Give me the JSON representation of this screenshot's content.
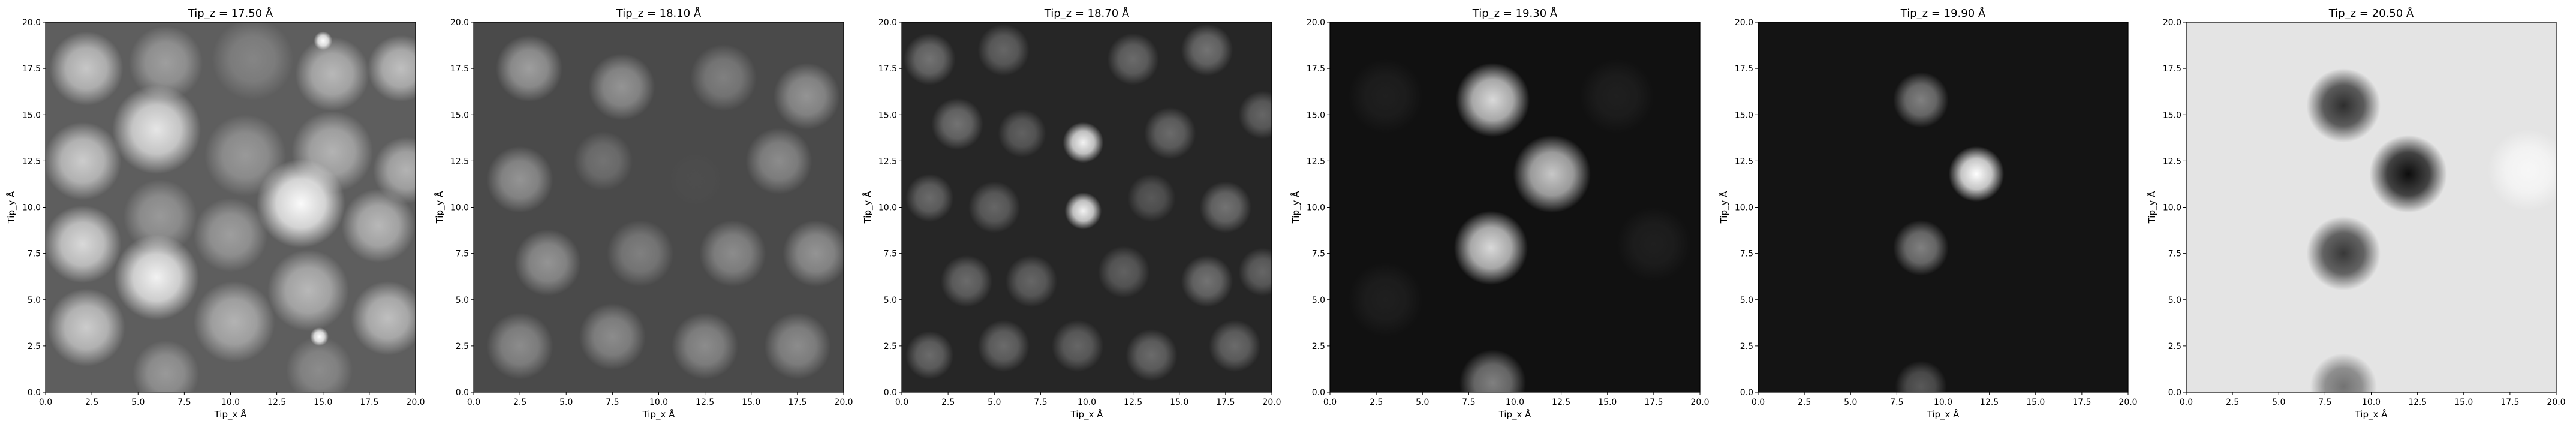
{
  "chart_data": [
    {
      "type": "heatmap",
      "title": "Tip_z = 17.50 Å",
      "xlabel": "Tip_x Å",
      "ylabel": "Tip_y Å",
      "xlim": [
        0,
        20
      ],
      "ylim": [
        0,
        20
      ],
      "xticks": [
        "0.0",
        "2.5",
        "5.0",
        "7.5",
        "10.0",
        "12.5",
        "15.0",
        "17.5",
        "20.0"
      ],
      "yticks": [
        "0.0",
        "2.5",
        "5.0",
        "7.5",
        "10.0",
        "12.5",
        "15.0",
        "17.5",
        "20.0"
      ],
      "colormap": "gray",
      "background": "#5e5e5e",
      "features": [
        {
          "x": 2.2,
          "y": 17.5,
          "r": 2.0,
          "v": 0.78
        },
        {
          "x": 6.5,
          "y": 17.8,
          "r": 2.0,
          "v": 0.62
        },
        {
          "x": 11.2,
          "y": 18.0,
          "r": 2.2,
          "v": 0.52
        },
        {
          "x": 15.5,
          "y": 17.2,
          "r": 2.0,
          "v": 0.72
        },
        {
          "x": 19.2,
          "y": 17.5,
          "r": 1.8,
          "v": 0.75
        },
        {
          "x": 2.0,
          "y": 12.5,
          "r": 2.1,
          "v": 0.8
        },
        {
          "x": 6.0,
          "y": 14.2,
          "r": 2.4,
          "v": 0.9
        },
        {
          "x": 10.8,
          "y": 12.8,
          "r": 2.2,
          "v": 0.6
        },
        {
          "x": 15.5,
          "y": 13.0,
          "r": 2.2,
          "v": 0.7
        },
        {
          "x": 19.5,
          "y": 12.0,
          "r": 1.8,
          "v": 0.7
        },
        {
          "x": 2.0,
          "y": 8.0,
          "r": 2.1,
          "v": 0.85
        },
        {
          "x": 6.2,
          "y": 9.5,
          "r": 2.0,
          "v": 0.6
        },
        {
          "x": 10.0,
          "y": 8.5,
          "r": 2.0,
          "v": 0.62
        },
        {
          "x": 13.8,
          "y": 10.2,
          "r": 2.4,
          "v": 0.98
        },
        {
          "x": 18.0,
          "y": 9.0,
          "r": 2.0,
          "v": 0.72
        },
        {
          "x": 2.2,
          "y": 3.5,
          "r": 2.1,
          "v": 0.8
        },
        {
          "x": 6.0,
          "y": 6.2,
          "r": 2.3,
          "v": 0.95
        },
        {
          "x": 10.2,
          "y": 3.8,
          "r": 2.2,
          "v": 0.7
        },
        {
          "x": 14.2,
          "y": 5.5,
          "r": 2.2,
          "v": 0.72
        },
        {
          "x": 18.5,
          "y": 4.0,
          "r": 2.0,
          "v": 0.75
        },
        {
          "x": 6.5,
          "y": 1.0,
          "r": 1.8,
          "v": 0.6
        },
        {
          "x": 14.8,
          "y": 1.2,
          "r": 1.8,
          "v": 0.55
        },
        {
          "x": 15.0,
          "y": 19.0,
          "r": 0.5,
          "v": 1.0
        },
        {
          "x": 14.8,
          "y": 3.0,
          "r": 0.5,
          "v": 1.0
        }
      ]
    },
    {
      "type": "heatmap",
      "title": "Tip_z = 18.10 Å",
      "xlabel": "Tip_x Å",
      "ylabel": "Tip_y Å",
      "xlim": [
        0,
        20
      ],
      "ylim": [
        0,
        20
      ],
      "xticks": [
        "0.0",
        "2.5",
        "5.0",
        "7.5",
        "10.0",
        "12.5",
        "15.0",
        "17.5",
        "20.0"
      ],
      "yticks": [
        "0.0",
        "2.5",
        "5.0",
        "7.5",
        "10.0",
        "12.5",
        "15.0",
        "17.5",
        "20.0"
      ],
      "colormap": "gray",
      "background": "#4a4a4a",
      "features": [
        {
          "x": 3.0,
          "y": 17.5,
          "r": 1.8,
          "v": 0.62
        },
        {
          "x": 8.0,
          "y": 16.5,
          "r": 1.8,
          "v": 0.58
        },
        {
          "x": 13.5,
          "y": 17.0,
          "r": 1.8,
          "v": 0.5
        },
        {
          "x": 18.0,
          "y": 16.0,
          "r": 1.8,
          "v": 0.58
        },
        {
          "x": 2.5,
          "y": 11.5,
          "r": 1.8,
          "v": 0.58
        },
        {
          "x": 7.0,
          "y": 12.5,
          "r": 1.6,
          "v": 0.45
        },
        {
          "x": 12.0,
          "y": 11.5,
          "r": 1.5,
          "v": 0.3
        },
        {
          "x": 16.5,
          "y": 12.5,
          "r": 1.8,
          "v": 0.55
        },
        {
          "x": 4.0,
          "y": 7.0,
          "r": 1.8,
          "v": 0.58
        },
        {
          "x": 9.0,
          "y": 7.5,
          "r": 1.8,
          "v": 0.5
        },
        {
          "x": 14.0,
          "y": 7.5,
          "r": 1.8,
          "v": 0.55
        },
        {
          "x": 18.5,
          "y": 7.5,
          "r": 1.8,
          "v": 0.58
        },
        {
          "x": 2.5,
          "y": 2.5,
          "r": 1.8,
          "v": 0.55
        },
        {
          "x": 7.5,
          "y": 3.0,
          "r": 1.8,
          "v": 0.55
        },
        {
          "x": 12.5,
          "y": 2.5,
          "r": 1.8,
          "v": 0.55
        },
        {
          "x": 17.5,
          "y": 2.5,
          "r": 1.8,
          "v": 0.55
        }
      ]
    },
    {
      "type": "heatmap",
      "title": "Tip_z = 18.70 Å",
      "xlabel": "Tip_x Å",
      "ylabel": "Tip_y Å",
      "xlim": [
        0,
        20
      ],
      "ylim": [
        0,
        20
      ],
      "xticks": [
        "0.0",
        "2.5",
        "5.0",
        "7.5",
        "10.0",
        "12.5",
        "15.0",
        "17.5",
        "20.0"
      ],
      "yticks": [
        "0.0",
        "2.5",
        "5.0",
        "7.5",
        "10.0",
        "12.5",
        "15.0",
        "17.5",
        "20.0"
      ],
      "colormap": "gray",
      "background": "#262626",
      "features": [
        {
          "x": 1.5,
          "y": 18.0,
          "r": 1.4,
          "v": 0.45
        },
        {
          "x": 5.5,
          "y": 18.5,
          "r": 1.4,
          "v": 0.4
        },
        {
          "x": 12.5,
          "y": 18.0,
          "r": 1.4,
          "v": 0.42
        },
        {
          "x": 16.5,
          "y": 18.5,
          "r": 1.4,
          "v": 0.45
        },
        {
          "x": 19.5,
          "y": 15.0,
          "r": 1.3,
          "v": 0.4
        },
        {
          "x": 3.0,
          "y": 14.5,
          "r": 1.4,
          "v": 0.45
        },
        {
          "x": 6.5,
          "y": 14.0,
          "r": 1.3,
          "v": 0.38
        },
        {
          "x": 9.8,
          "y": 13.5,
          "r": 1.1,
          "v": 0.95
        },
        {
          "x": 14.5,
          "y": 14.0,
          "r": 1.4,
          "v": 0.42
        },
        {
          "x": 1.5,
          "y": 10.5,
          "r": 1.3,
          "v": 0.42
        },
        {
          "x": 5.0,
          "y": 10.0,
          "r": 1.4,
          "v": 0.4
        },
        {
          "x": 9.8,
          "y": 9.8,
          "r": 1.0,
          "v": 0.95
        },
        {
          "x": 13.5,
          "y": 10.5,
          "r": 1.3,
          "v": 0.35
        },
        {
          "x": 17.5,
          "y": 10.0,
          "r": 1.4,
          "v": 0.45
        },
        {
          "x": 3.5,
          "y": 6.0,
          "r": 1.4,
          "v": 0.42
        },
        {
          "x": 7.0,
          "y": 6.0,
          "r": 1.4,
          "v": 0.4
        },
        {
          "x": 12.0,
          "y": 6.5,
          "r": 1.4,
          "v": 0.38
        },
        {
          "x": 16.5,
          "y": 6.0,
          "r": 1.4,
          "v": 0.45
        },
        {
          "x": 19.5,
          "y": 6.5,
          "r": 1.3,
          "v": 0.4
        },
        {
          "x": 1.5,
          "y": 2.0,
          "r": 1.3,
          "v": 0.42
        },
        {
          "x": 5.5,
          "y": 2.5,
          "r": 1.4,
          "v": 0.42
        },
        {
          "x": 9.5,
          "y": 2.5,
          "r": 1.4,
          "v": 0.4
        },
        {
          "x": 13.5,
          "y": 2.0,
          "r": 1.4,
          "v": 0.42
        },
        {
          "x": 18.0,
          "y": 2.5,
          "r": 1.4,
          "v": 0.42
        }
      ]
    },
    {
      "type": "heatmap",
      "title": "Tip_z = 19.30 Å",
      "xlabel": "Tip_x Å",
      "ylabel": "Tip_y Å",
      "xlim": [
        0,
        20
      ],
      "ylim": [
        0,
        20
      ],
      "xticks": [
        "0.0",
        "2.5",
        "5.0",
        "7.5",
        "10.0",
        "12.5",
        "15.0",
        "17.5",
        "20.0"
      ],
      "yticks": [
        "0.0",
        "2.5",
        "5.0",
        "7.5",
        "10.0",
        "12.5",
        "15.0",
        "17.5",
        "20.0"
      ],
      "colormap": "gray",
      "background": "#111111",
      "features": [
        {
          "x": 8.8,
          "y": 15.8,
          "r": 2.0,
          "v": 0.85
        },
        {
          "x": 12.0,
          "y": 11.8,
          "r": 2.1,
          "v": 0.78
        },
        {
          "x": 8.7,
          "y": 7.8,
          "r": 2.0,
          "v": 0.85
        },
        {
          "x": 8.8,
          "y": 0.5,
          "r": 1.8,
          "v": 0.5
        },
        {
          "x": 3.0,
          "y": 16.0,
          "r": 2.0,
          "v": 0.12
        },
        {
          "x": 15.5,
          "y": 16.0,
          "r": 2.0,
          "v": 0.12
        },
        {
          "x": 17.5,
          "y": 8.0,
          "r": 2.0,
          "v": 0.12
        },
        {
          "x": 3.0,
          "y": 5.0,
          "r": 2.0,
          "v": 0.12
        }
      ]
    },
    {
      "type": "heatmap",
      "title": "Tip_z = 19.90 Å",
      "xlabel": "Tip_x Å",
      "ylabel": "Tip_y Å",
      "xlim": [
        0,
        20
      ],
      "ylim": [
        0,
        20
      ],
      "xticks": [
        "0.0",
        "2.5",
        "5.0",
        "7.5",
        "10.0",
        "12.5",
        "15.0",
        "17.5",
        "20.0"
      ],
      "yticks": [
        "0.0",
        "2.5",
        "5.0",
        "7.5",
        "10.0",
        "12.5",
        "15.0",
        "17.5",
        "20.0"
      ],
      "colormap": "gray",
      "background": "#141414",
      "features": [
        {
          "x": 8.8,
          "y": 15.8,
          "r": 1.5,
          "v": 0.5
        },
        {
          "x": 11.8,
          "y": 11.8,
          "r": 1.5,
          "v": 1.0
        },
        {
          "x": 8.8,
          "y": 7.8,
          "r": 1.5,
          "v": 0.5
        },
        {
          "x": 8.8,
          "y": 0.3,
          "r": 1.4,
          "v": 0.35
        }
      ]
    },
    {
      "type": "heatmap",
      "title": "Tip_z = 20.50 Å",
      "xlabel": "Tip_x Å",
      "ylabel": "Tip_y Å",
      "xlim": [
        0,
        20
      ],
      "ylim": [
        0,
        20
      ],
      "xticks": [
        "0.0",
        "2.5",
        "5.0",
        "7.5",
        "10.0",
        "12.5",
        "15.0",
        "17.5",
        "20.0"
      ],
      "yticks": [
        "0.0",
        "2.5",
        "5.0",
        "7.5",
        "10.0",
        "12.5",
        "15.0",
        "17.5",
        "20.0"
      ],
      "colormap": "gray",
      "background": "#e4e4e4",
      "features": [
        {
          "x": 8.5,
          "y": 15.5,
          "r": 2.0,
          "v": 0.18
        },
        {
          "x": 12.0,
          "y": 11.8,
          "r": 2.1,
          "v": 0.05
        },
        {
          "x": 8.5,
          "y": 7.5,
          "r": 2.0,
          "v": 0.22
        },
        {
          "x": 8.5,
          "y": 0.3,
          "r": 1.8,
          "v": 0.45
        },
        {
          "x": 18.5,
          "y": 12.0,
          "r": 2.2,
          "v": 0.97
        }
      ]
    }
  ]
}
